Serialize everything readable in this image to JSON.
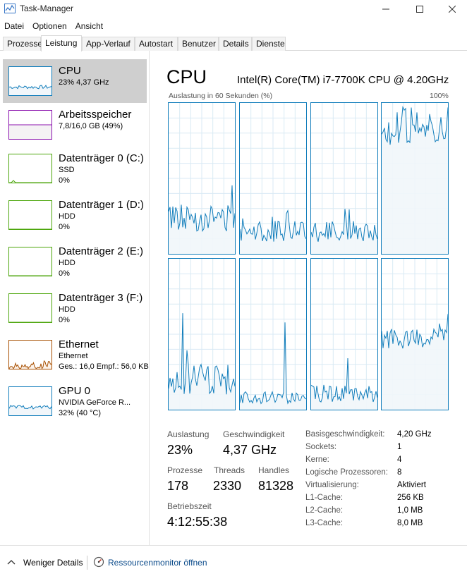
{
  "window": {
    "title": "Task-Manager",
    "icon": "task-manager-icon",
    "controls": [
      "minimize-icon",
      "maximize-icon",
      "close-icon"
    ]
  },
  "menu": [
    "Datei",
    "Optionen",
    "Ansicht"
  ],
  "tabs": [
    {
      "label": "Prozesse",
      "active": false
    },
    {
      "label": "Leistung",
      "active": true
    },
    {
      "label": "App-Verlauf",
      "active": false
    },
    {
      "label": "Autostart",
      "active": false
    },
    {
      "label": "Benutzer",
      "active": false
    },
    {
      "label": "Details",
      "active": false
    },
    {
      "label": "Dienste",
      "active": false
    }
  ],
  "sidebar": [
    {
      "title": "CPU",
      "line2": "23% 4,37 GHz",
      "line3": "",
      "selected": true,
      "color": "#117dbb",
      "fill": "#f1f6fa"
    },
    {
      "title": "Arbeitsspeicher",
      "line2": "7,8/16,0 GB (49%)",
      "line3": "",
      "selected": false,
      "color": "#8b12ae",
      "fill": "#f4f2f4"
    },
    {
      "title": "Datenträger 0 (C:)",
      "line2": "SSD",
      "line3": "0%",
      "selected": false,
      "color": "#4da60c",
      "fill": "#ffffff"
    },
    {
      "title": "Datenträger 1 (D:)",
      "line2": "HDD",
      "line3": "0%",
      "selected": false,
      "color": "#4da60c",
      "fill": "#ffffff"
    },
    {
      "title": "Datenträger 2 (E:)",
      "line2": "HDD",
      "line3": "0%",
      "selected": false,
      "color": "#4da60c",
      "fill": "#ffffff"
    },
    {
      "title": "Datenträger 3 (F:)",
      "line2": "HDD",
      "line3": "0%",
      "selected": false,
      "color": "#4da60c",
      "fill": "#ffffff"
    },
    {
      "title": "Ethernet",
      "line2": "Ethernet",
      "line3": "Ges.: 16,0  Empf.: 56,0 KB",
      "selected": false,
      "color": "#a74f01",
      "fill": "#fcf3eb"
    },
    {
      "title": "GPU 0",
      "line2": "NVIDIA GeForce R...",
      "line3": "32% (40 °C)",
      "selected": false,
      "color": "#117dbb",
      "fill": "#f1f6fa"
    }
  ],
  "cpu": {
    "title": "CPU",
    "model": "Intel(R) Core(TM) i7-7700K CPU @ 4.20GHz",
    "graph_label": "Auslastung in 60 Sekunden (%)",
    "graph_max": "100%",
    "graph_color": "#117dbb",
    "graph_fill": "#f1f6fa",
    "grid_color": "#d9eaf4",
    "stats": {
      "auslastung_label": "Auslastung",
      "auslastung": "23%",
      "geschwindigkeit_label": "Geschwindigkeit",
      "geschwindigkeit": "4,37 GHz",
      "prozesse_label": "Prozesse",
      "prozesse": "178",
      "threads_label": "Threads",
      "threads": "2330",
      "handles_label": "Handles",
      "handles": "81328",
      "betriebszeit_label": "Betriebszeit",
      "betriebszeit": "4:12:55:38"
    },
    "details": [
      {
        "key": "Basisgeschwindigkeit:",
        "value": "4,20 GHz"
      },
      {
        "key": "Sockets:",
        "value": "1"
      },
      {
        "key": "Kerne:",
        "value": "4"
      },
      {
        "key": "Logische Prozessoren:",
        "value": "8"
      },
      {
        "key": "Virtualisierung:",
        "value": "Aktiviert"
      },
      {
        "key": "L1-Cache:",
        "value": "256 KB"
      },
      {
        "key": "L2-Cache:",
        "value": "1,0 MB"
      },
      {
        "key": "L3-Cache:",
        "value": "8,0 MB"
      }
    ]
  },
  "footer": {
    "less_details": "Weniger Details",
    "resource_monitor": "Ressourcenmonitor öffnen"
  }
}
